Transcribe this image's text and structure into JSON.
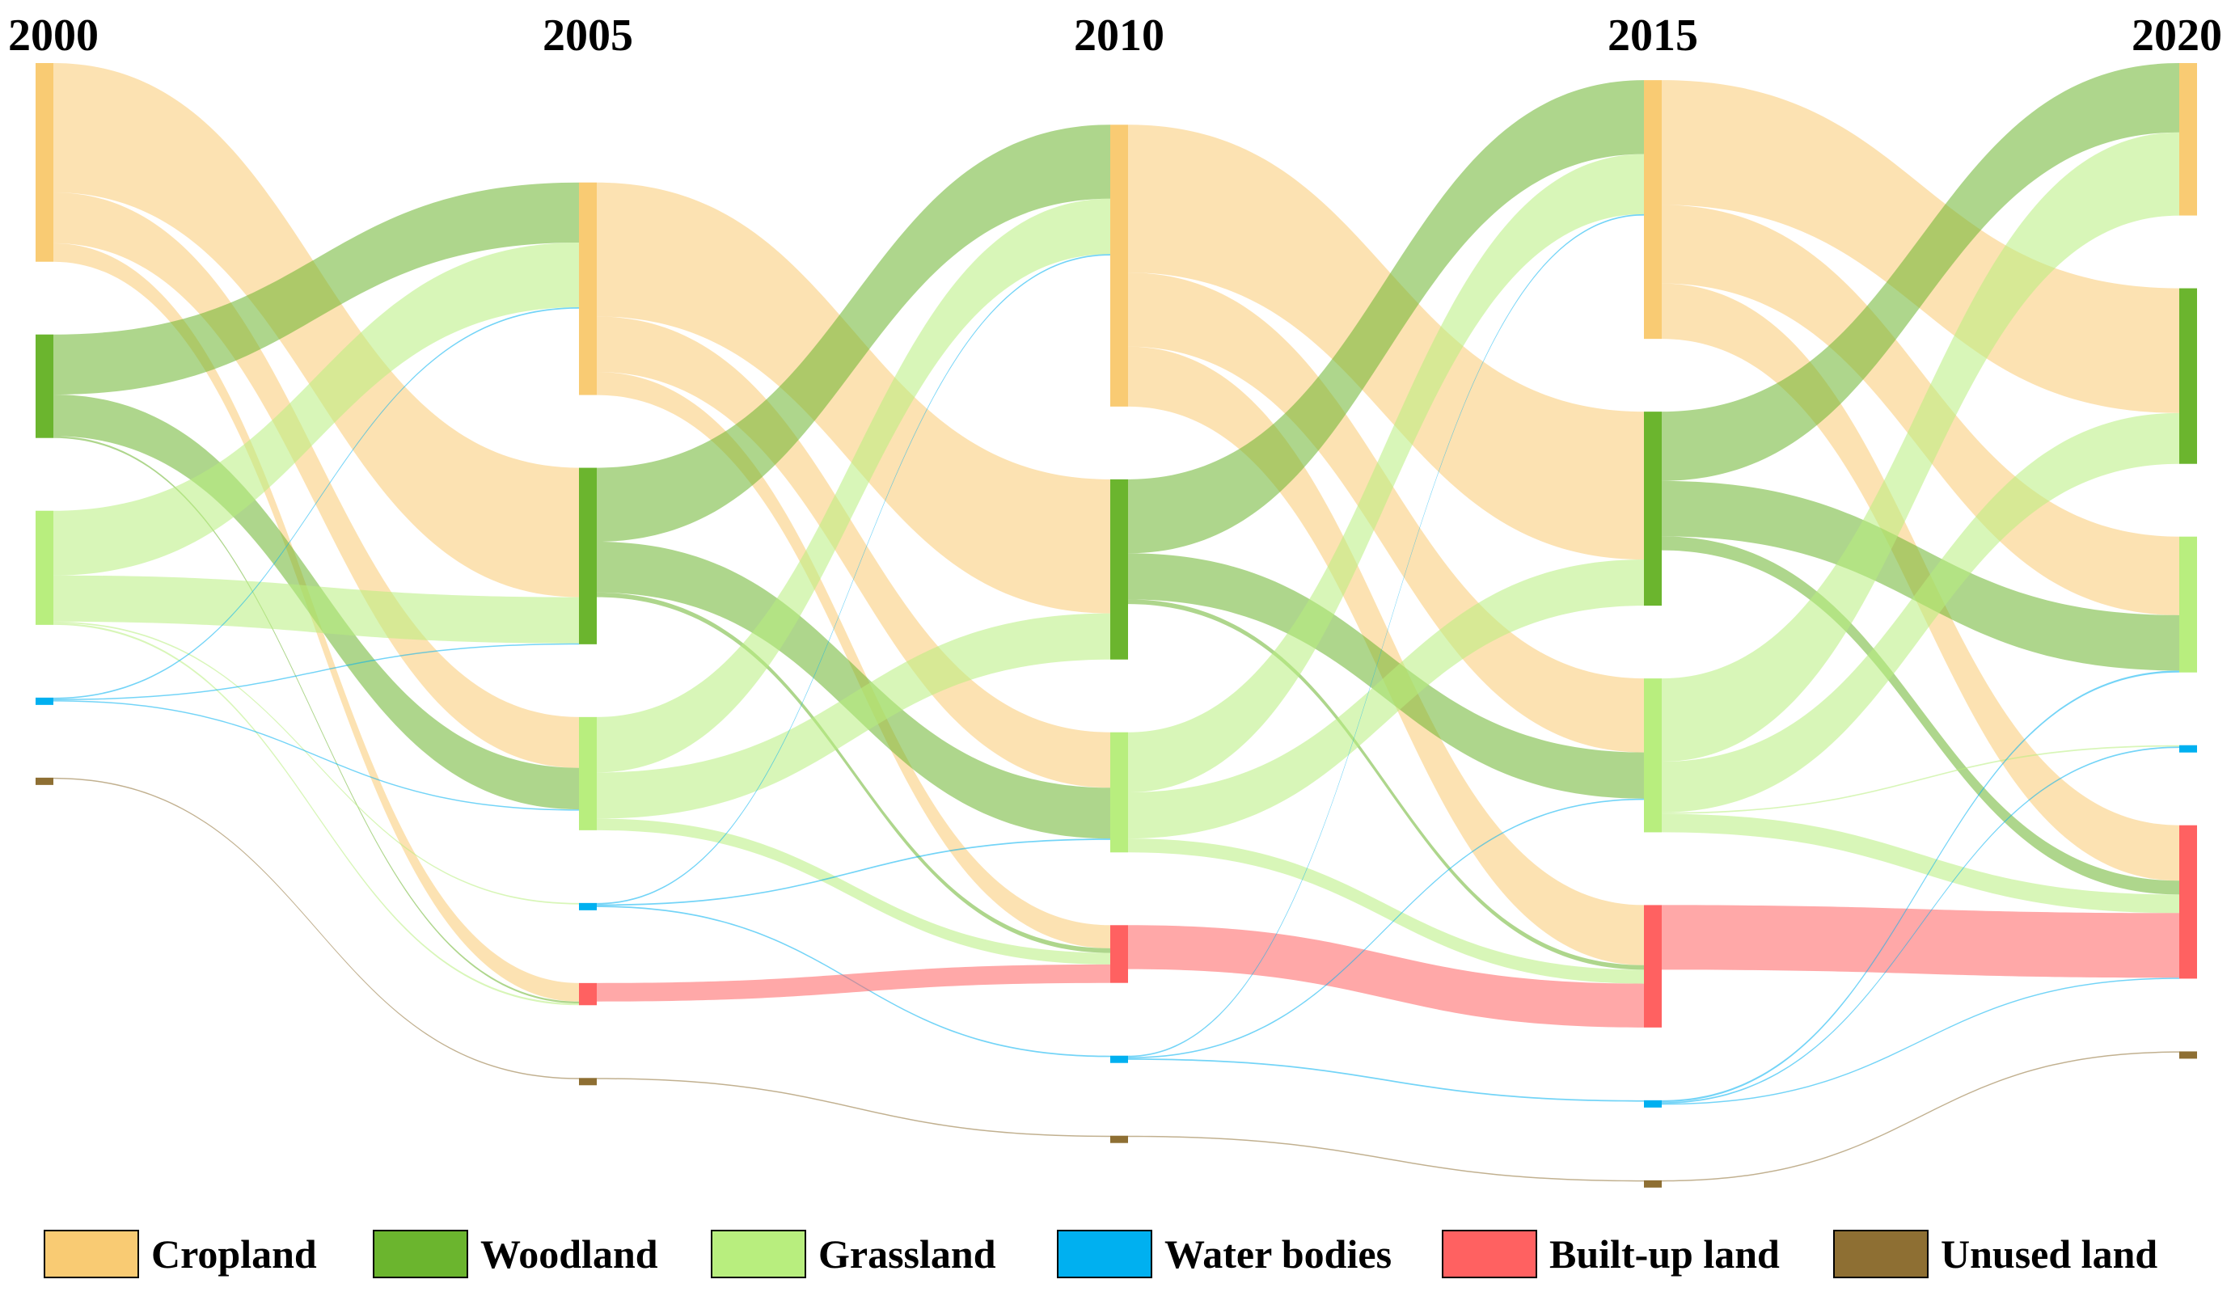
{
  "chart_data": {
    "type": "sankey",
    "title": "",
    "years": [
      "2000",
      "2005",
      "2010",
      "2015",
      "2020"
    ],
    "categories": [
      {
        "key": "cropland",
        "label": "Cropland",
        "color": "#F9CB73"
      },
      {
        "key": "woodland",
        "label": "Woodland",
        "color": "#6BB52E"
      },
      {
        "key": "grassland",
        "label": "Grassland",
        "color": "#B8EE7E"
      },
      {
        "key": "water",
        "label": "Water bodies",
        "color": "#00B0F0"
      },
      {
        "key": "builtup",
        "label": "Built-up land",
        "color": "#FF6161"
      },
      {
        "key": "unused",
        "label": "Unused land",
        "color": "#8E6F33"
      }
    ],
    "node_order": [
      [
        "cropland",
        "woodland",
        "grassland",
        "water",
        "unused"
      ],
      [
        "cropland",
        "woodland",
        "grassland",
        "water",
        "builtup",
        "unused"
      ],
      [
        "cropland",
        "woodland",
        "grassland",
        "builtup",
        "water",
        "unused"
      ],
      [
        "cropland",
        "woodland",
        "grassland",
        "builtup",
        "water",
        "unused"
      ],
      [
        "cropland",
        "woodland",
        "grassland",
        "water",
        "builtup",
        "unused"
      ]
    ],
    "flows": [
      [
        {
          "from": "cropland",
          "to": "woodland",
          "value": 2.8
        },
        {
          "from": "cropland",
          "to": "grassland",
          "value": 1.1
        },
        {
          "from": "cropland",
          "to": "builtup",
          "value": 0.4
        },
        {
          "from": "woodland",
          "to": "cropland",
          "value": 1.3
        },
        {
          "from": "woodland",
          "to": "grassland",
          "value": 0.9
        },
        {
          "from": "woodland",
          "to": "builtup",
          "value": 0.04
        },
        {
          "from": "grassland",
          "to": "cropland",
          "value": 1.4
        },
        {
          "from": "grassland",
          "to": "woodland",
          "value": 1.0
        },
        {
          "from": "grassland",
          "to": "water",
          "value": 0.03
        },
        {
          "from": "grassland",
          "to": "builtup",
          "value": 0.04
        },
        {
          "from": "water",
          "to": "cropland",
          "value": 0.03
        },
        {
          "from": "water",
          "to": "woodland",
          "value": 0.02
        },
        {
          "from": "water",
          "to": "grassland",
          "value": 0.02
        },
        {
          "from": "unused",
          "to": "unused",
          "value": 0.02
        }
      ],
      [
        {
          "from": "cropland",
          "to": "woodland",
          "value": 2.9
        },
        {
          "from": "cropland",
          "to": "grassland",
          "value": 1.2
        },
        {
          "from": "cropland",
          "to": "builtup",
          "value": 0.5
        },
        {
          "from": "woodland",
          "to": "cropland",
          "value": 1.6
        },
        {
          "from": "woodland",
          "to": "grassland",
          "value": 1.1
        },
        {
          "from": "woodland",
          "to": "builtup",
          "value": 0.1
        },
        {
          "from": "grassland",
          "to": "cropland",
          "value": 1.2
        },
        {
          "from": "grassland",
          "to": "woodland",
          "value": 1.0
        },
        {
          "from": "grassland",
          "to": "builtup",
          "value": 0.25
        },
        {
          "from": "water",
          "to": "cropland",
          "value": 0.03
        },
        {
          "from": "water",
          "to": "grassland",
          "value": 0.03
        },
        {
          "from": "water",
          "to": "water",
          "value": 0.03
        },
        {
          "from": "builtup",
          "to": "builtup",
          "value": 0.4
        },
        {
          "from": "unused",
          "to": "unused",
          "value": 0.02
        }
      ],
      [
        {
          "from": "cropland",
          "to": "woodland",
          "value": 3.2
        },
        {
          "from": "cropland",
          "to": "grassland",
          "value": 1.6
        },
        {
          "from": "cropland",
          "to": "builtup",
          "value": 1.3
        },
        {
          "from": "woodland",
          "to": "cropland",
          "value": 1.6
        },
        {
          "from": "woodland",
          "to": "grassland",
          "value": 1.0
        },
        {
          "from": "woodland",
          "to": "builtup",
          "value": 0.1
        },
        {
          "from": "grassland",
          "to": "cropland",
          "value": 1.3
        },
        {
          "from": "grassland",
          "to": "woodland",
          "value": 1.0
        },
        {
          "from": "grassland",
          "to": "builtup",
          "value": 0.3
        },
        {
          "from": "builtup",
          "to": "builtup",
          "value": 0.95
        },
        {
          "from": "water",
          "to": "cropland",
          "value": 0.03
        },
        {
          "from": "water",
          "to": "grassland",
          "value": 0.03
        },
        {
          "from": "water",
          "to": "water",
          "value": 0.03
        },
        {
          "from": "unused",
          "to": "unused",
          "value": 0.02
        }
      ],
      [
        {
          "from": "cropland",
          "to": "woodland",
          "value": 2.7
        },
        {
          "from": "cropland",
          "to": "grassland",
          "value": 1.7
        },
        {
          "from": "cropland",
          "to": "builtup",
          "value": 1.2
        },
        {
          "from": "woodland",
          "to": "cropland",
          "value": 1.5
        },
        {
          "from": "woodland",
          "to": "grassland",
          "value": 1.2
        },
        {
          "from": "woodland",
          "to": "builtup",
          "value": 0.3
        },
        {
          "from": "grassland",
          "to": "cropland",
          "value": 1.8
        },
        {
          "from": "grassland",
          "to": "woodland",
          "value": 1.1
        },
        {
          "from": "grassland",
          "to": "water",
          "value": 0.03
        },
        {
          "from": "grassland",
          "to": "builtup",
          "value": 0.4
        },
        {
          "from": "builtup",
          "to": "builtup",
          "value": 1.4
        },
        {
          "from": "water",
          "to": "grassland",
          "value": 0.04
        },
        {
          "from": "water",
          "to": "water",
          "value": 0.03
        },
        {
          "from": "water",
          "to": "builtup",
          "value": 0.02
        },
        {
          "from": "unused",
          "to": "unused",
          "value": 0.02
        }
      ]
    ],
    "legend_position": "bottom"
  }
}
